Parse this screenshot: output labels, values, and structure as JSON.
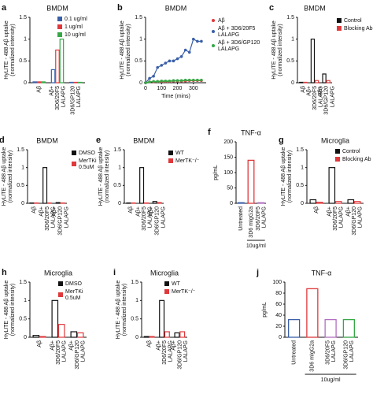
{
  "chart_data": [
    {
      "type": "bar",
      "panel": "a",
      "title": "BMDM",
      "y_label": "HyLITE - 488 Aβ uptake\n(normalized intensity)",
      "categories": [
        "Aβ",
        "Aβ+\n3D6/20F5\nLALAPG",
        "3D6/GP120\nLALAPG"
      ],
      "series": [
        {
          "name": "0.1 ug/ml",
          "color": "#3a5fa8",
          "values": [
            0.02,
            0.3,
            0.01
          ]
        },
        {
          "name": "1 ug/ml",
          "color": "#e0383b",
          "values": [
            0.02,
            0.75,
            0.01
          ]
        },
        {
          "name": "10 ug/ml",
          "color": "#35a845",
          "values": [
            0.02,
            1.0,
            0.01
          ]
        }
      ],
      "ylim": [
        0,
        1.5
      ],
      "yticks": [
        0,
        0.5,
        1,
        1.5
      ],
      "legend": "upper right"
    },
    {
      "type": "line",
      "panel": "b",
      "title": "BMDM",
      "y_label": "HyLITE - 488 Aβ uptake\n(normalized intensity)",
      "x_label": "Time (mins)",
      "x": [
        0,
        25,
        50,
        75,
        100,
        125,
        150,
        175,
        200,
        225,
        250,
        275,
        300,
        325,
        350
      ],
      "series": [
        {
          "name": "Aβ",
          "color": "#e0383b",
          "values": [
            0,
            0.02,
            0.02,
            0.03,
            0.03,
            0.03,
            0.03,
            0.04,
            0.04,
            0.04,
            0.04,
            0.05,
            0.05,
            0.05,
            0.05
          ]
        },
        {
          "name": "Aβ + 3D6/20F5\nLALAPG",
          "color": "#3a5fa8",
          "values": [
            0,
            0.1,
            0.15,
            0.35,
            0.4,
            0.45,
            0.5,
            0.5,
            0.55,
            0.6,
            0.75,
            0.7,
            1.0,
            0.95,
            0.95
          ]
        },
        {
          "name": "Aβ + 3D6/GP120\nLALAPG",
          "color": "#35a845",
          "values": [
            0,
            0.02,
            0.03,
            0.03,
            0.04,
            0.04,
            0.04,
            0.05,
            0.05,
            0.05,
            0.06,
            0.06,
            0.06,
            0.06,
            0.06
          ]
        }
      ],
      "xlim": [
        0,
        380
      ],
      "xticks": [
        0,
        100,
        200,
        300
      ],
      "ylim": [
        0,
        1.5
      ],
      "yticks": [
        0,
        0.5,
        1,
        1.5
      ],
      "legend": "right"
    },
    {
      "type": "bar",
      "panel": "c",
      "title": "BMDM",
      "y_label": "HyLITE - 488 Aβ uptake\n(normalized intensity)",
      "categories": [
        "Aβ",
        "Aβ+\n3D6/20F5\nLALAPG",
        "Aβ+\n3D6/GP120\nLALAPG"
      ],
      "series": [
        {
          "name": "Control",
          "color": "#111111",
          "values": [
            0.01,
            1.0,
            0.2
          ]
        },
        {
          "name": "Blocking Ab",
          "color": "#e0383b",
          "values": [
            0.01,
            0.05,
            0.05
          ]
        }
      ],
      "ylim": [
        0,
        1.5
      ],
      "yticks": [
        0,
        0.5,
        1,
        1.5
      ],
      "legend": "right"
    },
    {
      "type": "bar",
      "panel": "d",
      "title": "BMDM",
      "y_label": "HyLITE - 488 Aβ uptake\n(normalized intensity)",
      "categories": [
        "Aβ",
        "Aβ+\n3D6/20F5\nLALAPG",
        "Aβ+\n3D6/GP120\nLALAPG"
      ],
      "series": [
        {
          "name": "DMSO",
          "color": "#111111",
          "values": [
            0.01,
            1.0,
            0.02
          ]
        },
        {
          "name": "MerTKi\n0.5uM",
          "color": "#e0383b",
          "values": [
            0.01,
            0.01,
            0.01
          ]
        }
      ],
      "ylim": [
        0,
        1.5
      ],
      "yticks": [
        0,
        0.5,
        1,
        1.5
      ],
      "legend": "right"
    },
    {
      "type": "bar",
      "panel": "e",
      "title": "BMDM",
      "y_label": "HyLITE - 488 Aβ uptake\n(normalized intensity)",
      "categories": [
        "Aβ",
        "Aβ+\n3D6/20F5\nLALAPG",
        "Aβ+\n3D6/GP120\nLALAPG"
      ],
      "series": [
        {
          "name": "WT",
          "color": "#111111",
          "values": [
            0.01,
            1.0,
            0.05
          ]
        },
        {
          "name": "MerTK⁻/⁻",
          "color": "#e0383b",
          "values": [
            0.01,
            0.01,
            0.02
          ]
        }
      ],
      "ylim": [
        0,
        1.5
      ],
      "yticks": [
        0,
        0.5,
        1,
        1.5
      ],
      "legend": "right"
    },
    {
      "type": "bar",
      "panel": "f",
      "title": "TNF-α",
      "y_label": "pg/mL",
      "categories": [
        "Untreated",
        "3D6 mIgG2a",
        "3D6/20F5\nLALAPG"
      ],
      "values": [
        2,
        140,
        2
      ],
      "colors": [
        "#3a5fa8",
        "#e0383b",
        "#b06fc0"
      ],
      "ylim": [
        0,
        200
      ],
      "yticks": [
        0,
        50,
        100,
        150,
        200
      ],
      "bracket_label": "10ug/ml"
    },
    {
      "type": "bar",
      "panel": "g",
      "title": "Microglia",
      "y_label": "HyLITE - 488 Aβ uptake\n(normalized intensity)",
      "categories": [
        "Aβ",
        "Aβ+\n3D6/20F5\nLALAPG",
        "Aβ+\n3D6/GP120\nLALAPG"
      ],
      "series": [
        {
          "name": "Control",
          "color": "#111111",
          "values": [
            0.1,
            1.0,
            0.1
          ]
        },
        {
          "name": "Blocking Ab",
          "color": "#e0383b",
          "values": [
            0.03,
            0.05,
            0.05
          ]
        }
      ],
      "ylim": [
        0,
        1.5
      ],
      "yticks": [
        0,
        0.5,
        1,
        1.5
      ],
      "legend": "upper right"
    },
    {
      "type": "bar",
      "panel": "h",
      "title": "Microglia",
      "y_label": "HyLITE - 488 Aβ uptake\n(normalized intensity)",
      "categories": [
        "Aβ",
        "Aβ+\n3D6/20F5\nLALAPG",
        "Aβ+\n3D6/GP120\nLALAPG"
      ],
      "series": [
        {
          "name": "DMSO",
          "color": "#111111",
          "values": [
            0.05,
            1.0,
            0.15
          ]
        },
        {
          "name": "MerTKi\n0.5uM",
          "color": "#e0383b",
          "values": [
            0.02,
            0.35,
            0.12
          ]
        }
      ],
      "ylim": [
        0,
        1.5
      ],
      "yticks": [
        0,
        0.5,
        1,
        1.5
      ],
      "legend": "upper right"
    },
    {
      "type": "bar",
      "panel": "i",
      "title": "Microglia",
      "y_label": "HyLITE - 488 Aβ uptake\n(normalized intensity)",
      "categories": [
        "Aβ",
        "Aβ+\n3D6/20F5\nLALAPG",
        "Aβ+\n3D6/GP120\nLALAPG"
      ],
      "series": [
        {
          "name": "WT",
          "color": "#111111",
          "values": [
            0.02,
            1.0,
            0.12
          ]
        },
        {
          "name": "MerTK⁻/⁻",
          "color": "#e0383b",
          "values": [
            0.02,
            0.15,
            0.15
          ]
        }
      ],
      "ylim": [
        0,
        1.5
      ],
      "yticks": [
        0,
        0.5,
        1,
        1.5
      ],
      "legend": "upper right"
    },
    {
      "type": "bar",
      "panel": "j",
      "title": "TNF-α",
      "y_label": "pg/mL",
      "categories": [
        "Untreated",
        "3D6 mIgG2a",
        "3D6/20F5\nLALAPG",
        "3D6/GP120\nLALAPG"
      ],
      "values": [
        32,
        88,
        32,
        32
      ],
      "colors": [
        "#3a5fa8",
        "#e0383b",
        "#b06fc0",
        "#35a845"
      ],
      "ylim": [
        0,
        100
      ],
      "yticks": [
        0,
        20,
        40,
        60,
        80,
        100
      ],
      "bracket_label": "10ug/ml"
    }
  ]
}
